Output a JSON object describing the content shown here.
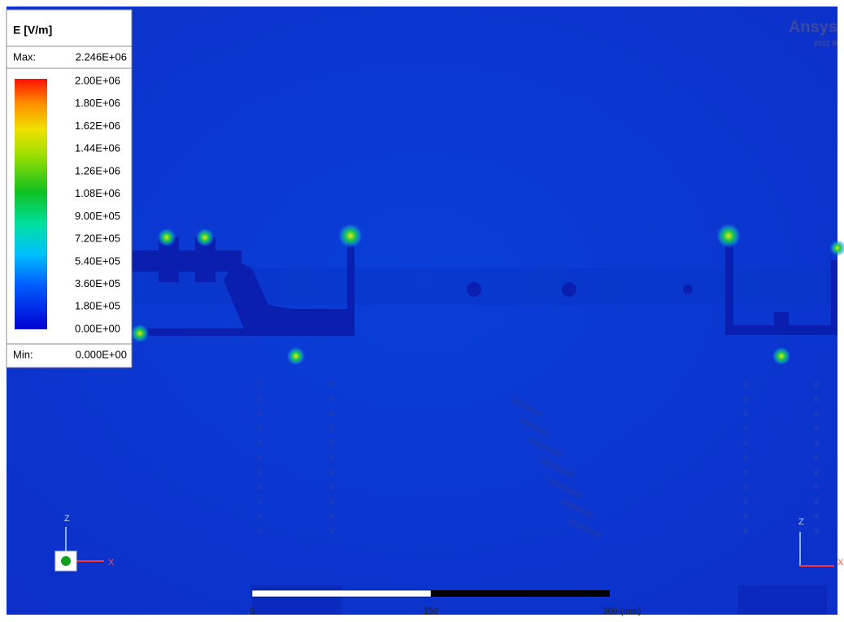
{
  "legend": {
    "title": "E [V/m]",
    "max_label": "Max:",
    "max_value": "2.246E+06",
    "min_label": "Min:",
    "min_value": "0.000E+00",
    "levels": [
      "2.00E+06",
      "1.80E+06",
      "1.62E+06",
      "1.44E+06",
      "1.26E+06",
      "1.08E+06",
      "9.00E+05",
      "7.20E+05",
      "5.40E+05",
      "3.60E+05",
      "1.80E+05",
      "0.00E+00"
    ]
  },
  "watermark": {
    "brand": "Ansys",
    "version": "2022 R"
  },
  "scale_bar": {
    "labels": [
      "0",
      "150",
      "300 (mm)"
    ]
  },
  "axes_left": {
    "z": "Z",
    "x": "X"
  },
  "axes_right": {
    "z": "Z",
    "x": "X"
  }
}
